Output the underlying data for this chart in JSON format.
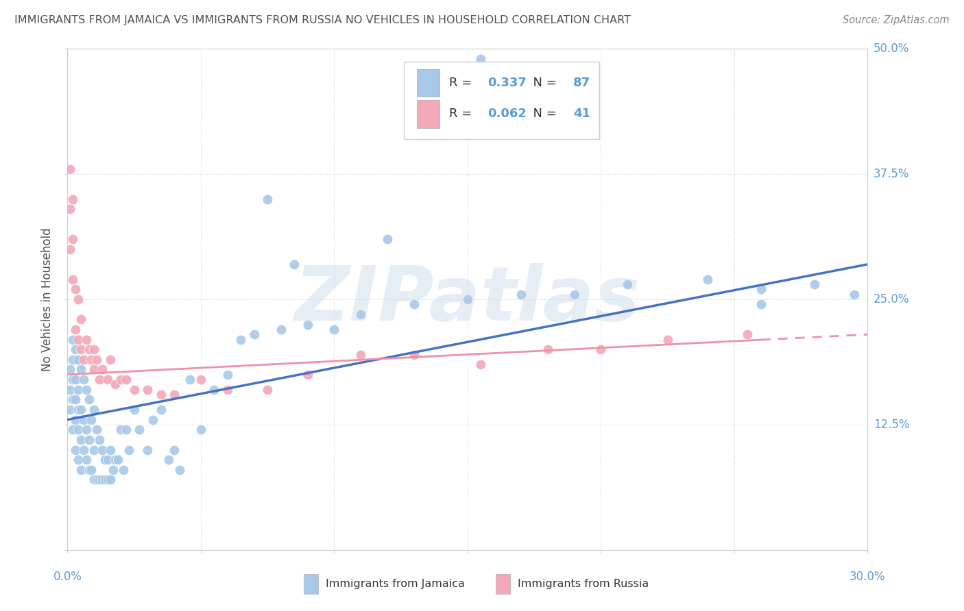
{
  "title": "IMMIGRANTS FROM JAMAICA VS IMMIGRANTS FROM RUSSIA NO VEHICLES IN HOUSEHOLD CORRELATION CHART",
  "source": "Source: ZipAtlas.com",
  "xmin": 0.0,
  "xmax": 0.3,
  "ymin": 0.0,
  "ymax": 0.5,
  "legend_blue_R": "0.337",
  "legend_blue_N": "87",
  "legend_pink_R": "0.062",
  "legend_pink_N": "41",
  "legend_blue_label": "Immigrants from Jamaica",
  "legend_pink_label": "Immigrants from Russia",
  "ylabel": "No Vehicles in Household",
  "watermark": "ZIPatlas",
  "blue_color": "#A8C8E8",
  "pink_color": "#F4A8B8",
  "blue_line_color": "#4472C4",
  "pink_line_color": "#F090A8",
  "title_color": "#505050",
  "axis_label_color": "#5B9BD5",
  "blue_scatter_x": [
    0.001,
    0.001,
    0.001,
    0.002,
    0.002,
    0.002,
    0.002,
    0.002,
    0.003,
    0.003,
    0.003,
    0.003,
    0.003,
    0.004,
    0.004,
    0.004,
    0.004,
    0.004,
    0.005,
    0.005,
    0.005,
    0.005,
    0.006,
    0.006,
    0.006,
    0.007,
    0.007,
    0.007,
    0.008,
    0.008,
    0.008,
    0.009,
    0.009,
    0.01,
    0.01,
    0.01,
    0.011,
    0.011,
    0.012,
    0.012,
    0.013,
    0.013,
    0.014,
    0.014,
    0.015,
    0.015,
    0.016,
    0.016,
    0.017,
    0.018,
    0.019,
    0.02,
    0.021,
    0.022,
    0.023,
    0.025,
    0.027,
    0.03,
    0.032,
    0.035,
    0.038,
    0.04,
    0.042,
    0.046,
    0.05,
    0.055,
    0.06,
    0.065,
    0.07,
    0.08,
    0.09,
    0.1,
    0.11,
    0.13,
    0.15,
    0.17,
    0.19,
    0.21,
    0.24,
    0.26,
    0.28,
    0.295,
    0.155,
    0.085,
    0.26,
    0.075,
    0.12
  ],
  "blue_scatter_y": [
    0.14,
    0.16,
    0.18,
    0.12,
    0.15,
    0.17,
    0.19,
    0.21,
    0.1,
    0.13,
    0.15,
    0.17,
    0.2,
    0.09,
    0.12,
    0.14,
    0.16,
    0.19,
    0.08,
    0.11,
    0.14,
    0.18,
    0.1,
    0.13,
    0.17,
    0.09,
    0.12,
    0.16,
    0.08,
    0.11,
    0.15,
    0.08,
    0.13,
    0.07,
    0.1,
    0.14,
    0.07,
    0.12,
    0.07,
    0.11,
    0.07,
    0.1,
    0.07,
    0.09,
    0.07,
    0.09,
    0.07,
    0.1,
    0.08,
    0.09,
    0.09,
    0.12,
    0.08,
    0.12,
    0.1,
    0.14,
    0.12,
    0.1,
    0.13,
    0.14,
    0.09,
    0.1,
    0.08,
    0.17,
    0.12,
    0.16,
    0.175,
    0.21,
    0.215,
    0.22,
    0.225,
    0.22,
    0.235,
    0.245,
    0.25,
    0.255,
    0.255,
    0.265,
    0.27,
    0.26,
    0.265,
    0.255,
    0.49,
    0.285,
    0.245,
    0.35,
    0.31
  ],
  "pink_scatter_x": [
    0.001,
    0.001,
    0.001,
    0.002,
    0.002,
    0.002,
    0.003,
    0.003,
    0.004,
    0.004,
    0.005,
    0.005,
    0.006,
    0.007,
    0.008,
    0.009,
    0.01,
    0.01,
    0.011,
    0.012,
    0.013,
    0.015,
    0.016,
    0.018,
    0.02,
    0.022,
    0.025,
    0.03,
    0.035,
    0.04,
    0.05,
    0.06,
    0.075,
    0.09,
    0.11,
    0.13,
    0.155,
    0.18,
    0.2,
    0.225,
    0.255
  ],
  "pink_scatter_y": [
    0.3,
    0.34,
    0.38,
    0.27,
    0.31,
    0.35,
    0.22,
    0.26,
    0.21,
    0.25,
    0.2,
    0.23,
    0.19,
    0.21,
    0.2,
    0.19,
    0.18,
    0.2,
    0.19,
    0.17,
    0.18,
    0.17,
    0.19,
    0.165,
    0.17,
    0.17,
    0.16,
    0.16,
    0.155,
    0.155,
    0.17,
    0.16,
    0.16,
    0.175,
    0.195,
    0.195,
    0.185,
    0.2,
    0.2,
    0.21,
    0.215
  ],
  "blue_trendline_start_y": 0.13,
  "blue_trendline_end_y": 0.285,
  "pink_trendline_start_y": 0.175,
  "pink_trendline_end_y": 0.215
}
